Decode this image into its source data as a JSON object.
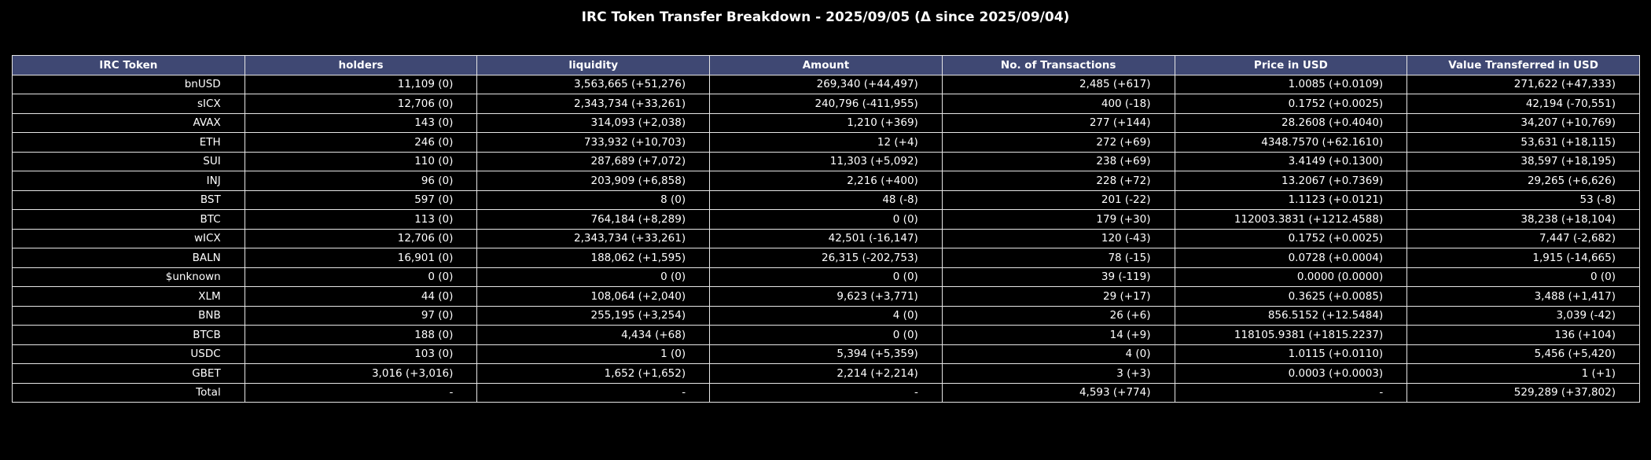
{
  "chart_data": {
    "type": "table",
    "title": "IRC Token Transfer Breakdown - 2025/09/05 (Δ since 2025/09/04)",
    "columns": [
      "IRC Token",
      "holders",
      "liquidity",
      "Amount",
      "No. of Transactions",
      "Price in USD",
      "Value Transferred in USD"
    ],
    "rows": [
      [
        "bnUSD",
        "11,109 (0)",
        "3,563,665 (+51,276)",
        "269,340 (+44,497)",
        "2,485 (+617)",
        "1.0085 (+0.0109)",
        "271,622 (+47,333)"
      ],
      [
        "sICX",
        "12,706 (0)",
        "2,343,734 (+33,261)",
        "240,796 (-411,955)",
        "400 (-18)",
        "0.1752 (+0.0025)",
        "42,194 (-70,551)"
      ],
      [
        "AVAX",
        "143 (0)",
        "314,093 (+2,038)",
        "1,210 (+369)",
        "277 (+144)",
        "28.2608 (+0.4040)",
        "34,207 (+10,769)"
      ],
      [
        "ETH",
        "246 (0)",
        "733,932 (+10,703)",
        "12 (+4)",
        "272 (+69)",
        "4348.7570 (+62.1610)",
        "53,631 (+18,115)"
      ],
      [
        "SUI",
        "110 (0)",
        "287,689 (+7,072)",
        "11,303 (+5,092)",
        "238 (+69)",
        "3.4149 (+0.1300)",
        "38,597 (+18,195)"
      ],
      [
        "INJ",
        "96 (0)",
        "203,909 (+6,858)",
        "2,216 (+400)",
        "228 (+72)",
        "13.2067 (+0.7369)",
        "29,265 (+6,626)"
      ],
      [
        "BST",
        "597 (0)",
        "8 (0)",
        "48 (-8)",
        "201 (-22)",
        "1.1123 (+0.0121)",
        "53 (-8)"
      ],
      [
        "BTC",
        "113 (0)",
        "764,184 (+8,289)",
        "0 (0)",
        "179 (+30)",
        "112003.3831 (+1212.4588)",
        "38,238 (+18,104)"
      ],
      [
        "wICX",
        "12,706 (0)",
        "2,343,734 (+33,261)",
        "42,501 (-16,147)",
        "120 (-43)",
        "0.1752 (+0.0025)",
        "7,447 (-2,682)"
      ],
      [
        "BALN",
        "16,901 (0)",
        "188,062 (+1,595)",
        "26,315 (-202,753)",
        "78 (-15)",
        "0.0728 (+0.0004)",
        "1,915 (-14,665)"
      ],
      [
        "$unknown",
        "0 (0)",
        "0 (0)",
        "0 (0)",
        "39 (-119)",
        "0.0000 (0.0000)",
        "0 (0)"
      ],
      [
        "XLM",
        "44 (0)",
        "108,064 (+2,040)",
        "9,623 (+3,771)",
        "29 (+17)",
        "0.3625 (+0.0085)",
        "3,488 (+1,417)"
      ],
      [
        "BNB",
        "97 (0)",
        "255,195 (+3,254)",
        "4 (0)",
        "26 (+6)",
        "856.5152 (+12.5484)",
        "3,039 (-42)"
      ],
      [
        "BTCB",
        "188 (0)",
        "4,434 (+68)",
        "0 (0)",
        "14 (+9)",
        "118105.9381 (+1815.2237)",
        "136 (+104)"
      ],
      [
        "USDC",
        "103 (0)",
        "1 (0)",
        "5,394 (+5,359)",
        "4 (0)",
        "1.0115 (+0.0110)",
        "5,456 (+5,420)"
      ],
      [
        "GBET",
        "3,016 (+3,016)",
        "1,652 (+1,652)",
        "2,214 (+2,214)",
        "3 (+3)",
        "0.0003 (+0.0003)",
        "1 (+1)"
      ],
      [
        "Total",
        "-",
        "-",
        "-",
        "4,593 (+774)",
        "-",
        "529,289 (+37,802)"
      ]
    ]
  },
  "colors": {
    "background": "#000000",
    "header_fill": "#3f4873",
    "grid_line": "#e6e6e6",
    "text": "#ffffff"
  }
}
